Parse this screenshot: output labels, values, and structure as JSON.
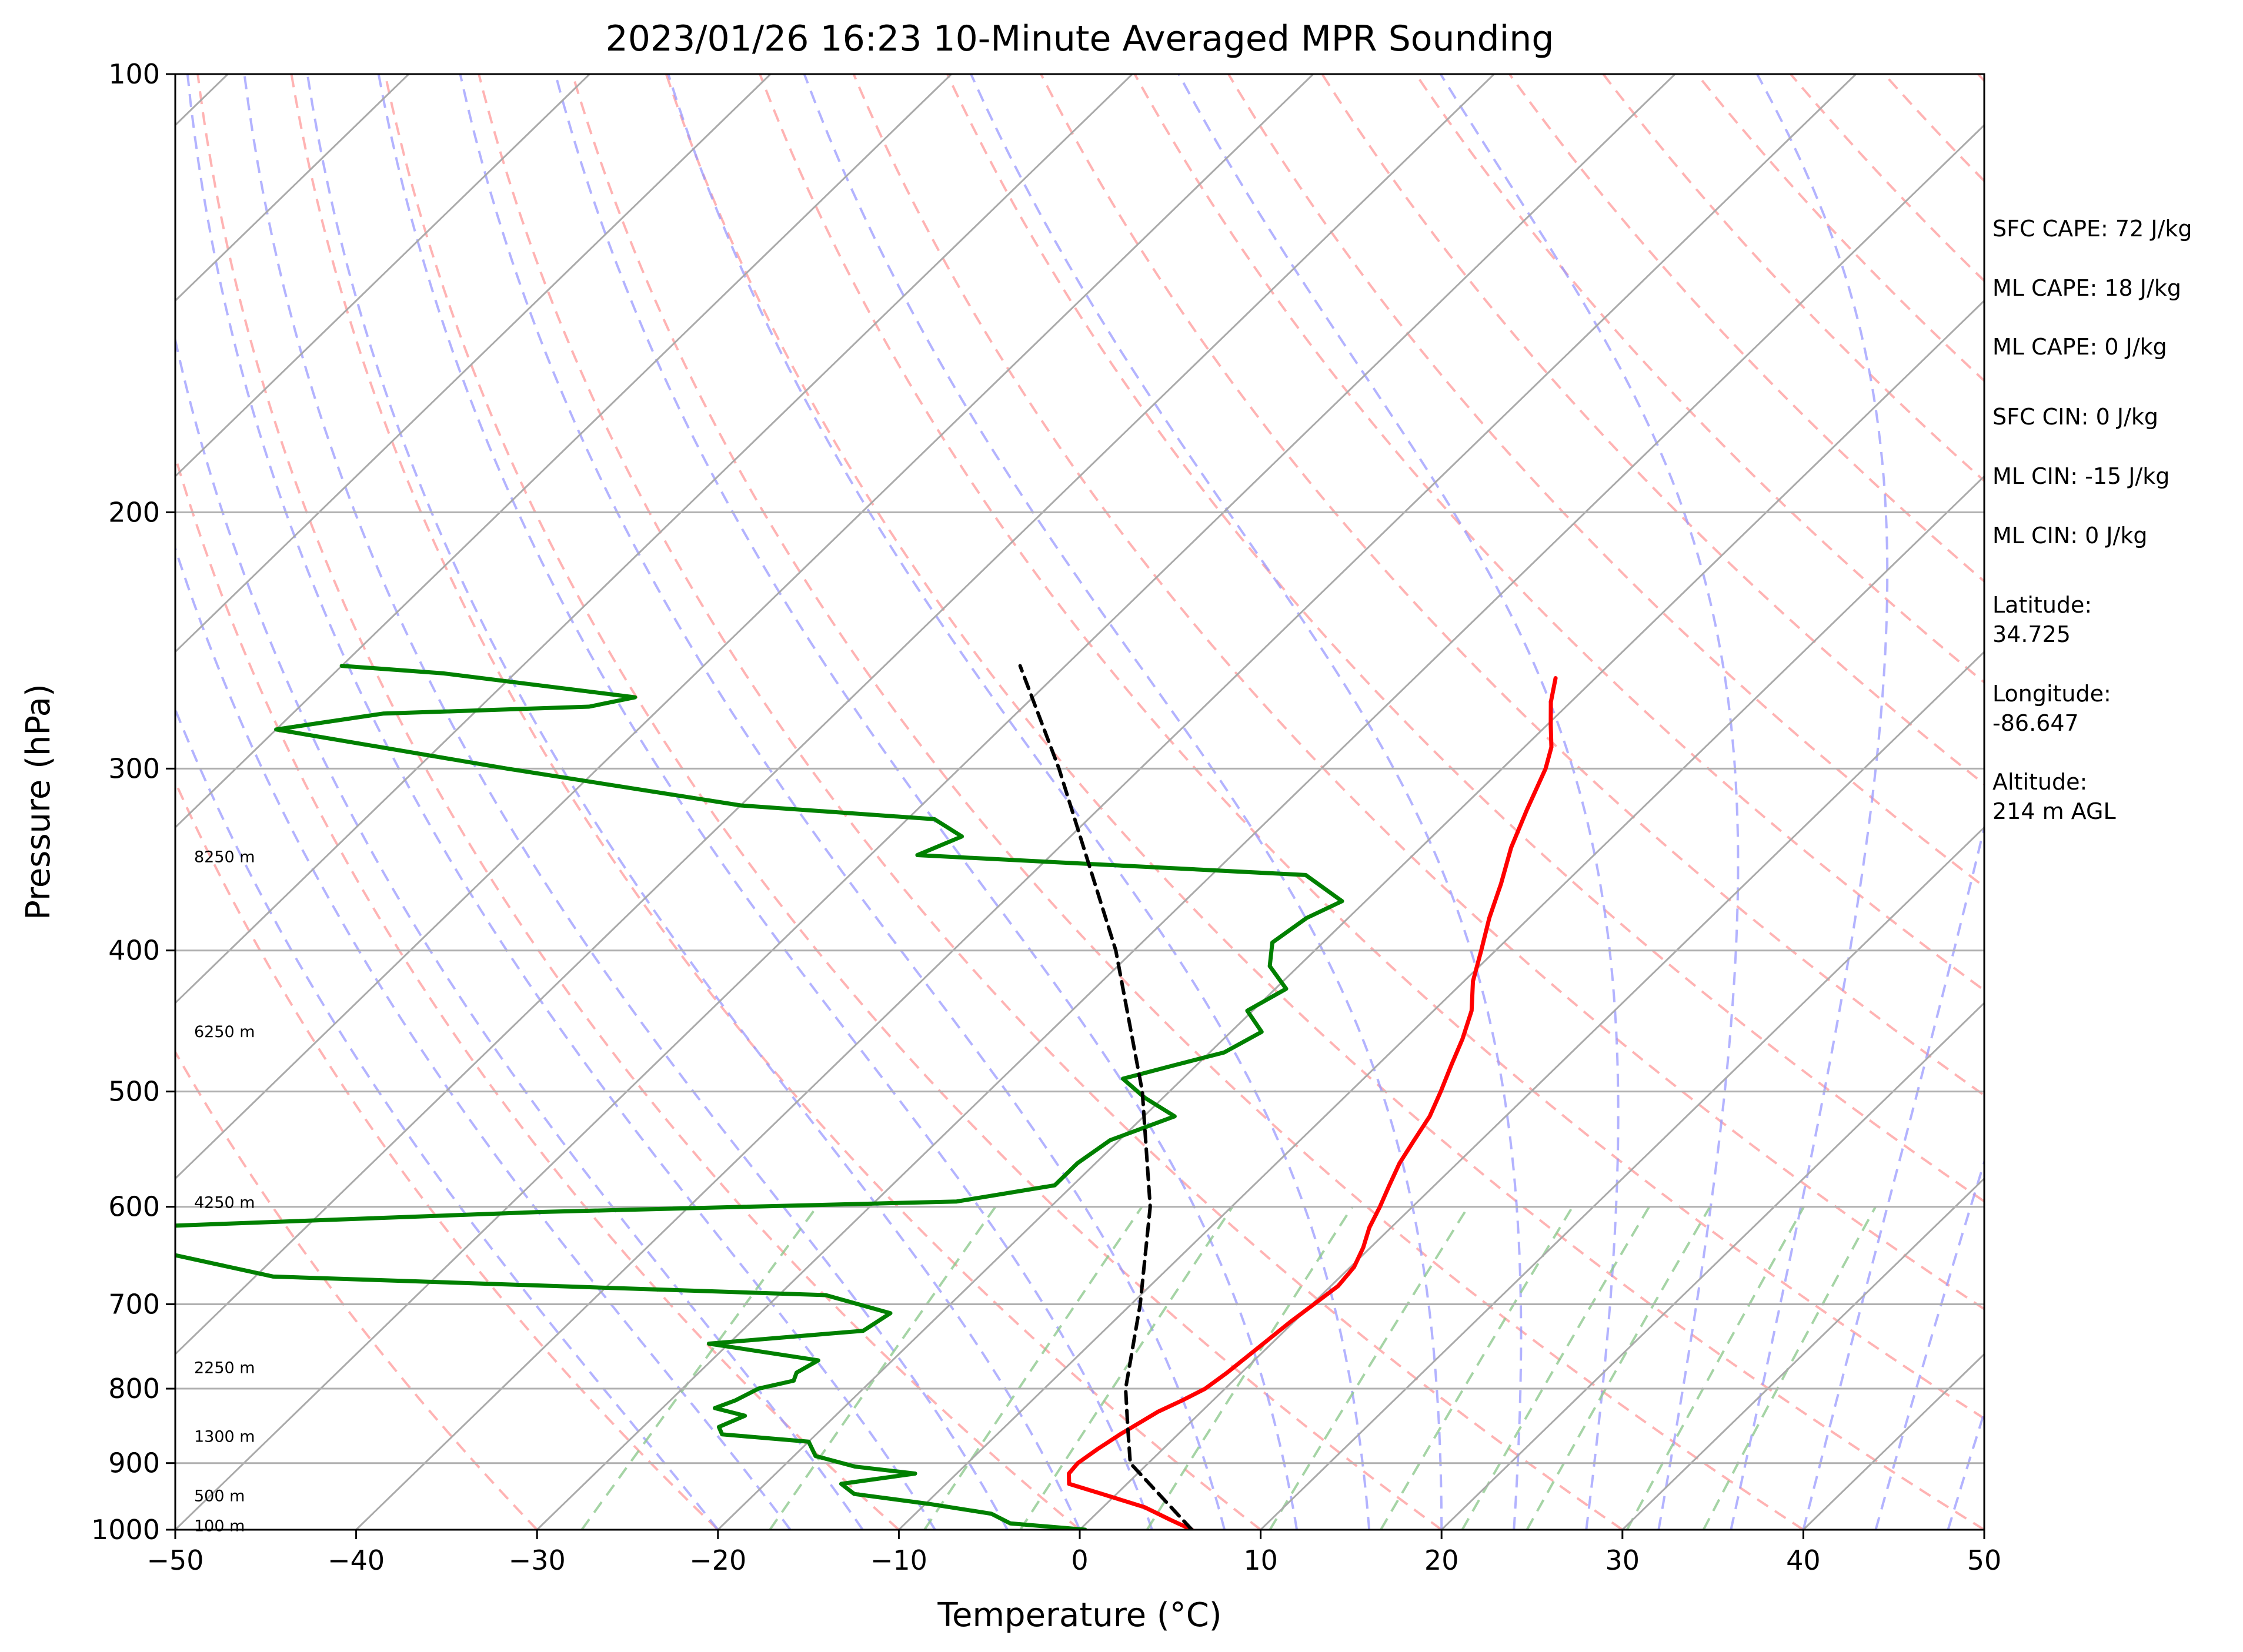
{
  "chart_data": {
    "type": "line",
    "title": "2023/01/26 16:23 10-Minute Averaged MPR Sounding",
    "xlabel": "Temperature (°C)",
    "ylabel": "Pressure (hPa)",
    "xlim": [
      -50,
      50
    ],
    "ylim": [
      1000,
      100
    ],
    "y_scale": "log",
    "skew": true,
    "grid": true,
    "x_ticks": [
      "−50",
      "−40",
      "−30",
      "−20",
      "−10",
      "0",
      "10",
      "20",
      "30",
      "40",
      "50"
    ],
    "y_ticks": [
      {
        "p": 100,
        "label": "100"
      },
      {
        "p": 200,
        "label": "200"
      },
      {
        "p": 300,
        "label": "300"
      },
      {
        "p": 400,
        "label": "400"
      },
      {
        "p": 500,
        "label": "500"
      },
      {
        "p": 600,
        "label": "600"
      },
      {
        "p": 700,
        "label": "700"
      },
      {
        "p": 800,
        "label": "800"
      },
      {
        "p": 900,
        "label": "900"
      },
      {
        "p": 1000,
        "label": "1000"
      }
    ],
    "series": [
      {
        "key": "temperature",
        "color": "#ff0000",
        "points": [
          [
            1000,
            6.2
          ],
          [
            985,
            4.5
          ],
          [
            965,
            2.3
          ],
          [
            945,
            -0.8
          ],
          [
            930,
            -3.2
          ],
          [
            915,
            -3.8
          ],
          [
            900,
            -3.9
          ],
          [
            880,
            -3.6
          ],
          [
            860,
            -3.2
          ],
          [
            845,
            -2.8
          ],
          [
            830,
            -2.4
          ],
          [
            815,
            -1.7
          ],
          [
            800,
            -1.1
          ],
          [
            780,
            -0.8
          ],
          [
            760,
            -0.6
          ],
          [
            740,
            -0.4
          ],
          [
            720,
            -0.2
          ],
          [
            700,
            0.1
          ],
          [
            680,
            0.4
          ],
          [
            660,
            0.2
          ],
          [
            640,
            -0.4
          ],
          [
            620,
            -1.2
          ],
          [
            600,
            -1.8
          ],
          [
            580,
            -2.5
          ],
          [
            560,
            -3.2
          ],
          [
            540,
            -3.7
          ],
          [
            520,
            -4.2
          ],
          [
            500,
            -5.0
          ],
          [
            480,
            -5.9
          ],
          [
            460,
            -6.8
          ],
          [
            440,
            -7.9
          ],
          [
            420,
            -9.5
          ],
          [
            400,
            -10.8
          ],
          [
            380,
            -12.2
          ],
          [
            360,
            -13.5
          ],
          [
            340,
            -15.0
          ],
          [
            320,
            -16.3
          ],
          [
            300,
            -17.6
          ],
          [
            290,
            -18.5
          ],
          [
            280,
            -19.8
          ],
          [
            270,
            -21.1
          ],
          [
            260,
            -22.2
          ]
        ]
      },
      {
        "key": "dewpoint",
        "color": "#008000",
        "points": [
          [
            1000,
            0.3
          ],
          [
            990,
            -4.2
          ],
          [
            975,
            -5.8
          ],
          [
            960,
            -9.8
          ],
          [
            945,
            -14.5
          ],
          [
            930,
            -15.8
          ],
          [
            915,
            -12.3
          ],
          [
            905,
            -16.0
          ],
          [
            890,
            -18.8
          ],
          [
            870,
            -20.0
          ],
          [
            860,
            -25.2
          ],
          [
            850,
            -25.8
          ],
          [
            835,
            -25.0
          ],
          [
            825,
            -27.1
          ],
          [
            815,
            -26.4
          ],
          [
            800,
            -25.8
          ],
          [
            790,
            -24.3
          ],
          [
            780,
            -24.6
          ],
          [
            765,
            -24.1
          ],
          [
            745,
            -31.1
          ],
          [
            730,
            -23.3
          ],
          [
            710,
            -22.8
          ],
          [
            690,
            -27.4
          ],
          [
            670,
            -59.0
          ],
          [
            640,
            -68.0
          ],
          [
            620,
            -70.0
          ],
          [
            605,
            -48.0
          ],
          [
            595,
            -25.5
          ],
          [
            580,
            -21.0
          ],
          [
            560,
            -21.0
          ],
          [
            540,
            -20.5
          ],
          [
            520,
            -18.3
          ],
          [
            505,
            -21.0
          ],
          [
            490,
            -23.3
          ],
          [
            480,
            -21.3
          ],
          [
            470,
            -19.2
          ],
          [
            455,
            -18.3
          ],
          [
            440,
            -20.3
          ],
          [
            425,
            -19.4
          ],
          [
            410,
            -21.6
          ],
          [
            395,
            -22.8
          ],
          [
            380,
            -22.3
          ],
          [
            370,
            -21.3
          ],
          [
            355,
            -24.8
          ],
          [
            344,
            -47.4
          ],
          [
            334,
            -46.0
          ],
          [
            325,
            -48.5
          ],
          [
            318,
            -60.0
          ],
          [
            300,
            -75.0
          ],
          [
            282,
            -90.0
          ],
          [
            275,
            -85.0
          ],
          [
            272,
            -74.0
          ],
          [
            268,
            -72.0
          ],
          [
            258,
            -84.0
          ],
          [
            255,
            -90.0
          ]
        ]
      },
      {
        "key": "parcel",
        "color": "#000000",
        "dashed": true,
        "points": [
          [
            1000,
            6.2
          ],
          [
            900,
            -1.0
          ],
          [
            850,
            -3.2
          ],
          [
            800,
            -5.5
          ],
          [
            700,
            -9.5
          ],
          [
            600,
            -14.5
          ],
          [
            500,
            -21.5
          ],
          [
            400,
            -31.0
          ],
          [
            300,
            -44.5
          ],
          [
            255,
            -52.5
          ]
        ]
      }
    ],
    "height_labels": [
      {
        "p": 994,
        "label": "100 m"
      },
      {
        "p": 948,
        "label": "500 m"
      },
      {
        "p": 863,
        "label": "1300 m"
      },
      {
        "p": 774,
        "label": "2250 m"
      },
      {
        "p": 596,
        "label": "4250 m"
      },
      {
        "p": 455,
        "label": "6250 m"
      },
      {
        "p": 345,
        "label": "8250 m"
      }
    ],
    "reference_lines": {
      "isotherm_color": "#aaaaaa",
      "dry_adiabat_color": "#ff9999",
      "moist_adiabat_color": "#9999ff",
      "mixing_ratio_color": "#8fc98f"
    },
    "annotations": [
      "SFC CAPE: 72 J/kg",
      "ML CAPE: 18 J/kg",
      "ML CAPE: 0 J/kg",
      "SFC CIN: 0 J/kg",
      "ML CIN: -15 J/kg",
      "ML CIN: 0 J/kg",
      "Latitude:",
      "34.725",
      "Longitude:",
      "-86.647",
      "Altitude:",
      "214 m AGL"
    ]
  }
}
